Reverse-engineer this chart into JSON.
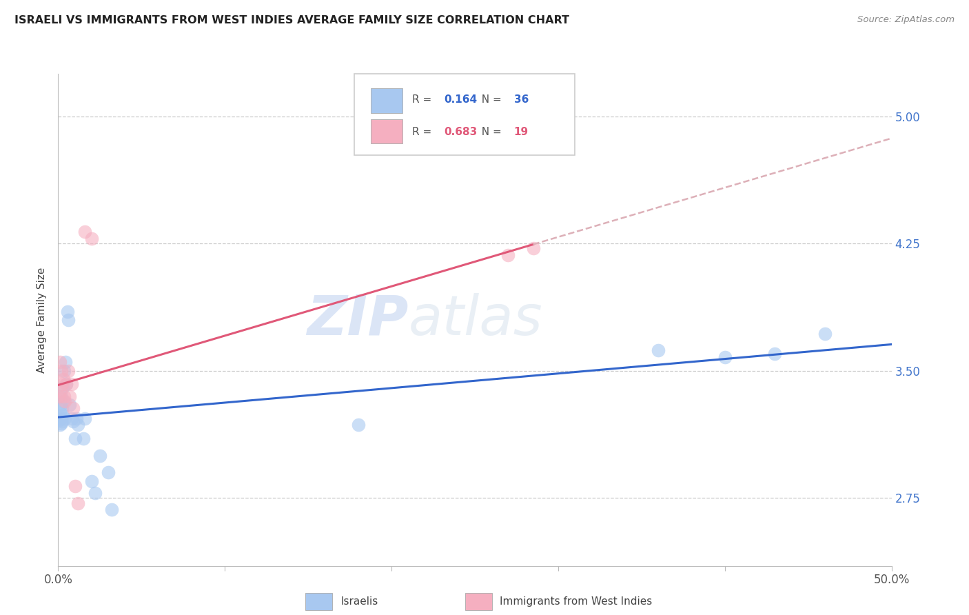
{
  "title": "ISRAELI VS IMMIGRANTS FROM WEST INDIES AVERAGE FAMILY SIZE CORRELATION CHART",
  "source": "Source: ZipAtlas.com",
  "ylabel": "Average Family Size",
  "yticks": [
    2.75,
    3.5,
    4.25,
    5.0
  ],
  "xlim": [
    0.0,
    0.5
  ],
  "ylim": [
    2.35,
    5.25
  ],
  "israelis_x": [
    0.0008,
    0.001,
    0.0012,
    0.0014,
    0.0016,
    0.0018,
    0.002,
    0.0022,
    0.0024,
    0.0026,
    0.0028,
    0.003,
    0.0035,
    0.004,
    0.0045,
    0.005,
    0.0055,
    0.006,
    0.007,
    0.008,
    0.009,
    0.01,
    0.011,
    0.012,
    0.015,
    0.016,
    0.02,
    0.022,
    0.025,
    0.03,
    0.032,
    0.18,
    0.36,
    0.4,
    0.43,
    0.46
  ],
  "israelis_y": [
    3.21,
    3.18,
    3.25,
    3.22,
    3.3,
    3.19,
    3.35,
    3.28,
    3.2,
    3.24,
    3.4,
    3.32,
    3.5,
    3.22,
    3.55,
    3.42,
    3.85,
    3.8,
    3.3,
    3.22,
    3.2,
    3.1,
    3.22,
    3.18,
    3.1,
    3.22,
    2.85,
    2.78,
    3.0,
    2.9,
    2.68,
    3.18,
    3.62,
    3.58,
    3.6,
    3.72
  ],
  "westindies_x": [
    0.0008,
    0.0012,
    0.0016,
    0.002,
    0.0025,
    0.003,
    0.0035,
    0.004,
    0.005,
    0.006,
    0.007,
    0.008,
    0.009,
    0.01,
    0.012,
    0.016,
    0.02,
    0.27,
    0.285
  ],
  "westindies_y": [
    3.35,
    3.55,
    3.38,
    3.5,
    3.42,
    3.45,
    3.35,
    3.32,
    3.42,
    3.5,
    3.35,
    3.42,
    3.28,
    2.82,
    2.72,
    4.32,
    4.28,
    4.18,
    4.22
  ],
  "israeli_color": "#a8c8f0",
  "westindies_color": "#f5afc0",
  "israeli_line_color": "#3366cc",
  "westindies_line_color": "#e05878",
  "dashed_line_color": "#ddb0b8",
  "R_israeli": "0.164",
  "N_israeli": "36",
  "R_westindies": "0.683",
  "N_westindies": "19",
  "watermark_zip": "ZIP",
  "watermark_atlas": "atlas",
  "background_color": "#ffffff",
  "grid_color": "#cccccc",
  "legend_R_color": "#3366cc",
  "legend_N_color": "#3366cc",
  "legend_R2_color": "#e05878",
  "legend_N2_color": "#e05878"
}
